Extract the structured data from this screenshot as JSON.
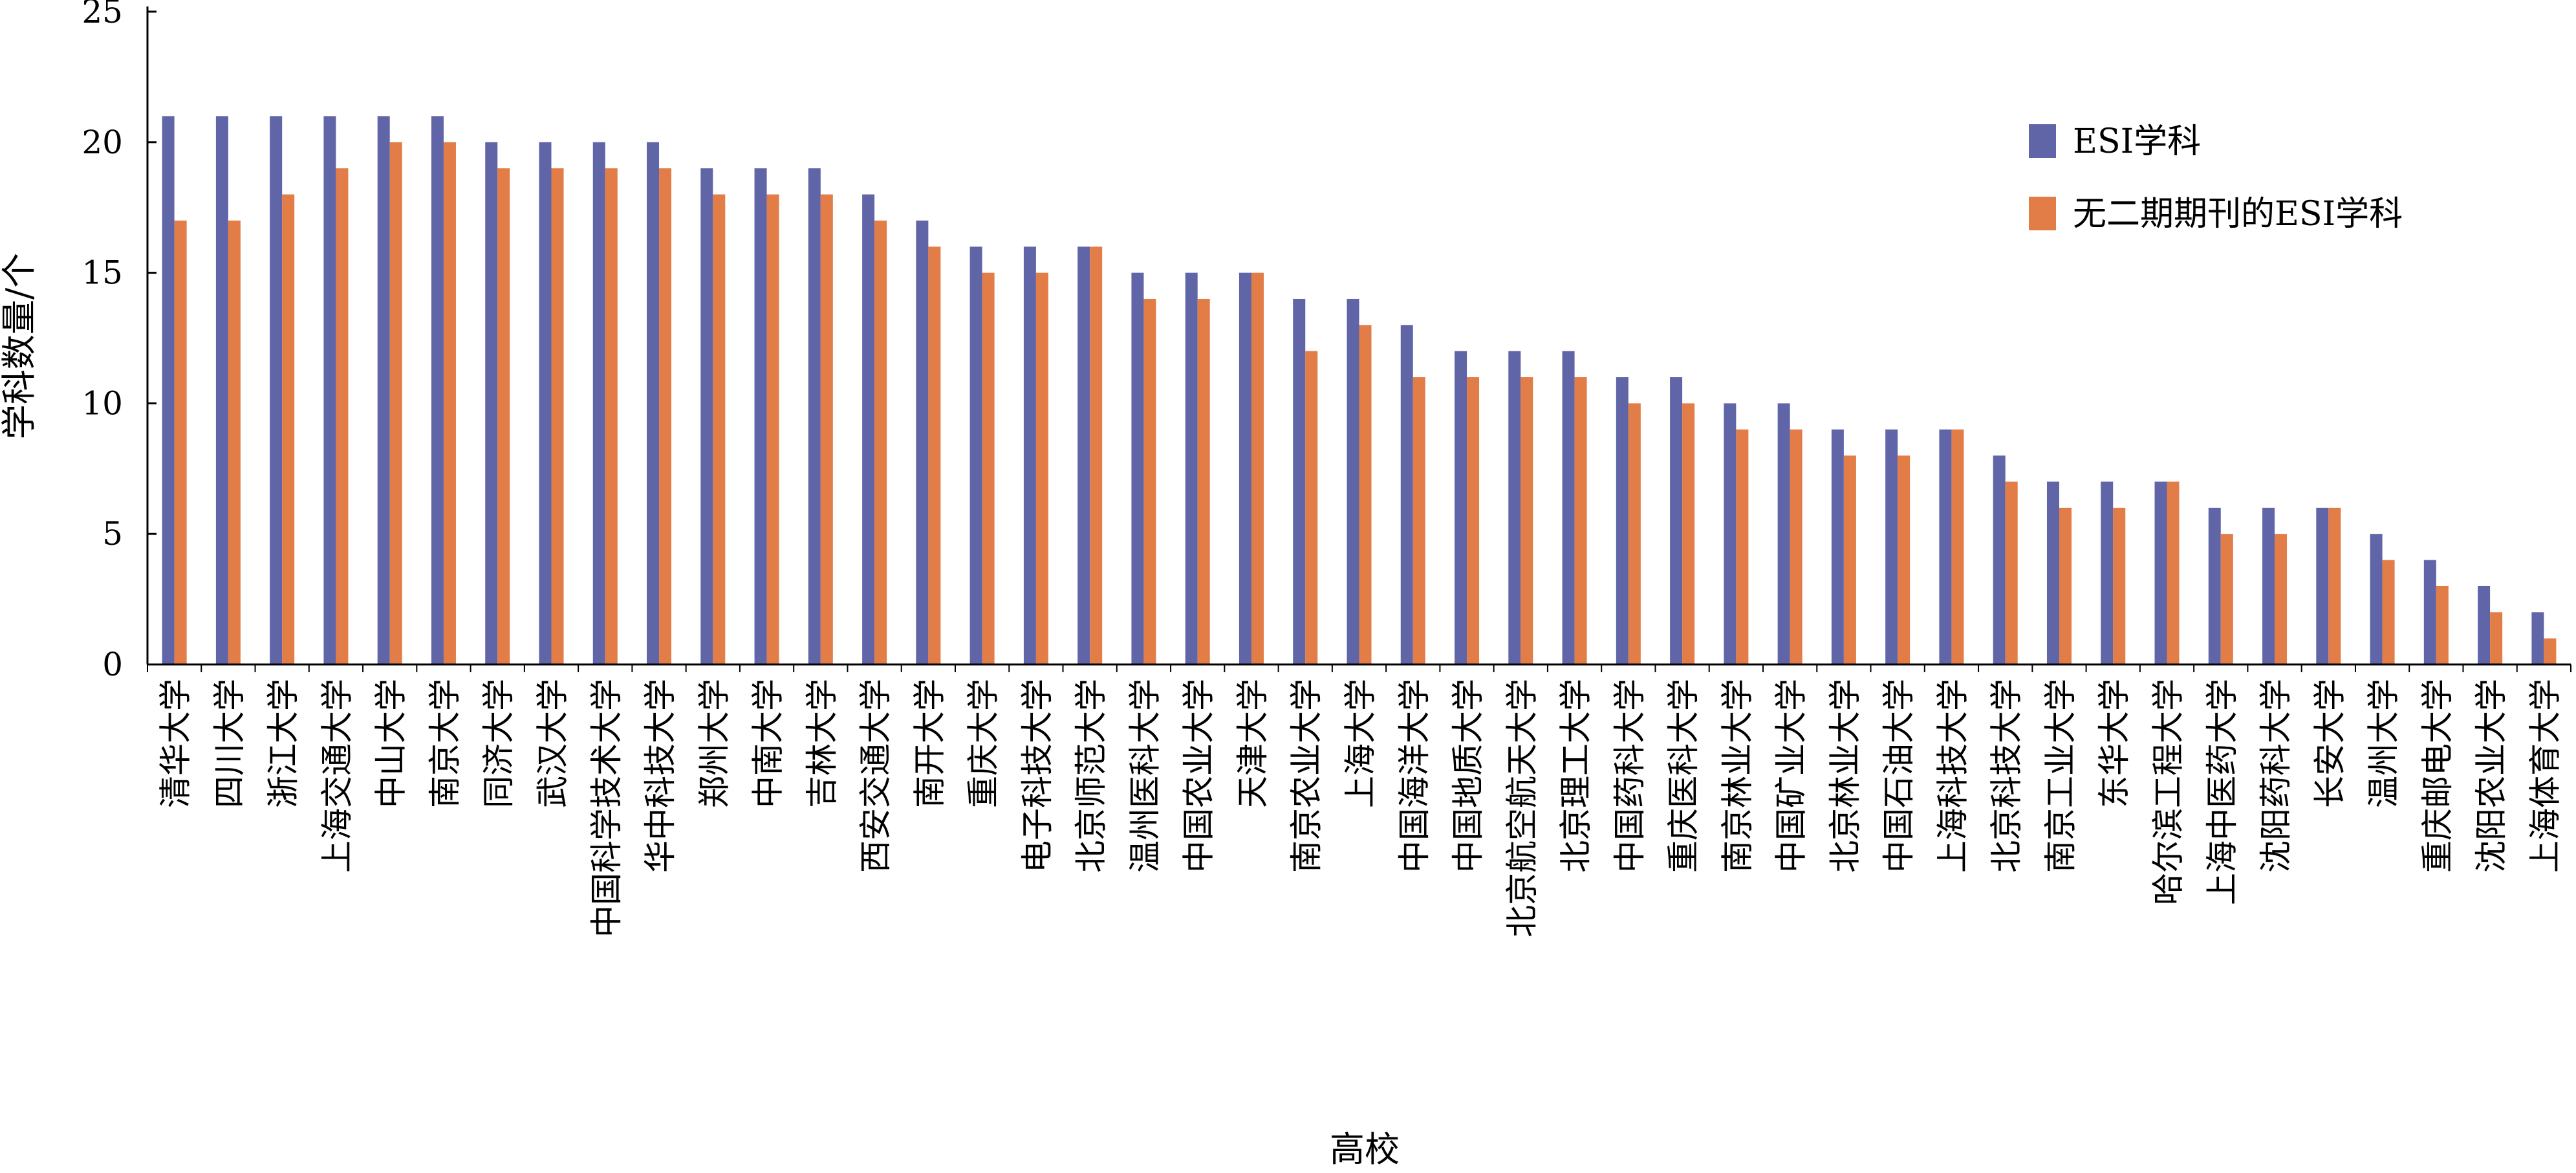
{
  "chart_data": {
    "type": "bar",
    "xlabel": "高校",
    "ylabel": "学科数量/个",
    "ylim": [
      0,
      25
    ],
    "yticks": [
      0,
      5,
      10,
      15,
      20,
      25
    ],
    "grid": false,
    "legend_position": "top-right",
    "categories": [
      "清华大学",
      "四川大学",
      "浙江大学",
      "上海交通大学",
      "中山大学",
      "南京大学",
      "同济大学",
      "武汉大学",
      "中国科学技术大学",
      "华中科技大学",
      "郑州大学",
      "中南大学",
      "吉林大学",
      "西安交通大学",
      "南开大学",
      "重庆大学",
      "电子科技大学",
      "北京师范大学",
      "温州医科大学",
      "中国农业大学",
      "天津大学",
      "南京农业大学",
      "上海大学",
      "中国海洋大学",
      "中国地质大学",
      "北京航空航天大学",
      "北京理工大学",
      "中国药科大学",
      "重庆医科大学",
      "南京林业大学",
      "中国矿业大学",
      "北京林业大学",
      "中国石油大学",
      "上海科技大学",
      "北京科技大学",
      "南京工业大学",
      "东华大学",
      "哈尔滨工程大学",
      "上海中医药大学",
      "沈阳药科大学",
      "长安大学",
      "温州大学",
      "重庆邮电大学",
      "沈阳农业大学",
      "上海体育大学"
    ],
    "series": [
      {
        "name": "ESI学科",
        "color": "#6065a8",
        "values": [
          21,
          21,
          21,
          21,
          21,
          21,
          20,
          20,
          20,
          20,
          19,
          19,
          19,
          18,
          17,
          16,
          16,
          16,
          15,
          15,
          15,
          14,
          14,
          13,
          12,
          12,
          12,
          11,
          11,
          10,
          10,
          9,
          9,
          9,
          8,
          7,
          7,
          7,
          6,
          6,
          6,
          5,
          4,
          3,
          2
        ]
      },
      {
        "name": "无二期期刊的ESI学科",
        "color": "#e27d47",
        "values": [
          17,
          17,
          18,
          19,
          20,
          20,
          19,
          19,
          19,
          19,
          18,
          18,
          18,
          17,
          16,
          15,
          15,
          16,
          14,
          14,
          15,
          12,
          13,
          11,
          11,
          11,
          11,
          10,
          10,
          9,
          9,
          8,
          8,
          9,
          7,
          6,
          6,
          7,
          5,
          5,
          6,
          4,
          3,
          2,
          1
        ]
      }
    ]
  }
}
